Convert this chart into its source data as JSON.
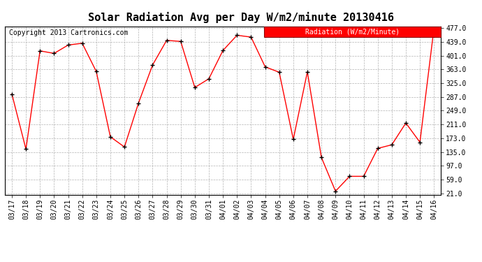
{
  "title": "Solar Radiation Avg per Day W/m2/minute 20130416",
  "copyright": "Copyright 2013 Cartronics.com",
  "legend_label": "Radiation (W/m2/Minute)",
  "labels": [
    "03/17",
    "03/18",
    "03/19",
    "03/20",
    "03/21",
    "03/22",
    "03/23",
    "03/24",
    "03/25",
    "03/26",
    "03/27",
    "03/28",
    "03/29",
    "03/30",
    "03/31",
    "04/01",
    "04/02",
    "04/03",
    "04/04",
    "04/05",
    "04/06",
    "04/07",
    "04/08",
    "04/09",
    "04/10",
    "04/11",
    "04/12",
    "04/13",
    "04/14",
    "04/15",
    "04/16"
  ],
  "values": [
    295,
    143,
    414,
    407,
    430,
    435,
    357,
    177,
    149,
    270,
    375,
    443,
    440,
    313,
    337,
    415,
    457,
    452,
    370,
    355,
    170,
    356,
    120,
    27,
    68,
    68,
    145,
    155,
    215,
    162,
    477
  ],
  "yticks": [
    21.0,
    59.0,
    97.0,
    135.0,
    173.0,
    211.0,
    249.0,
    287.0,
    325.0,
    363.0,
    401.0,
    439.0,
    477.0
  ],
  "line_color": "red",
  "marker_color": "black",
  "bg_color": "#ffffff",
  "grid_color": "#aaaaaa",
  "title_fontsize": 11,
  "copyright_fontsize": 7,
  "tick_fontsize": 7,
  "legend_bg": "red",
  "legend_fg": "white",
  "ymin": 21.0,
  "ymax": 477.0
}
